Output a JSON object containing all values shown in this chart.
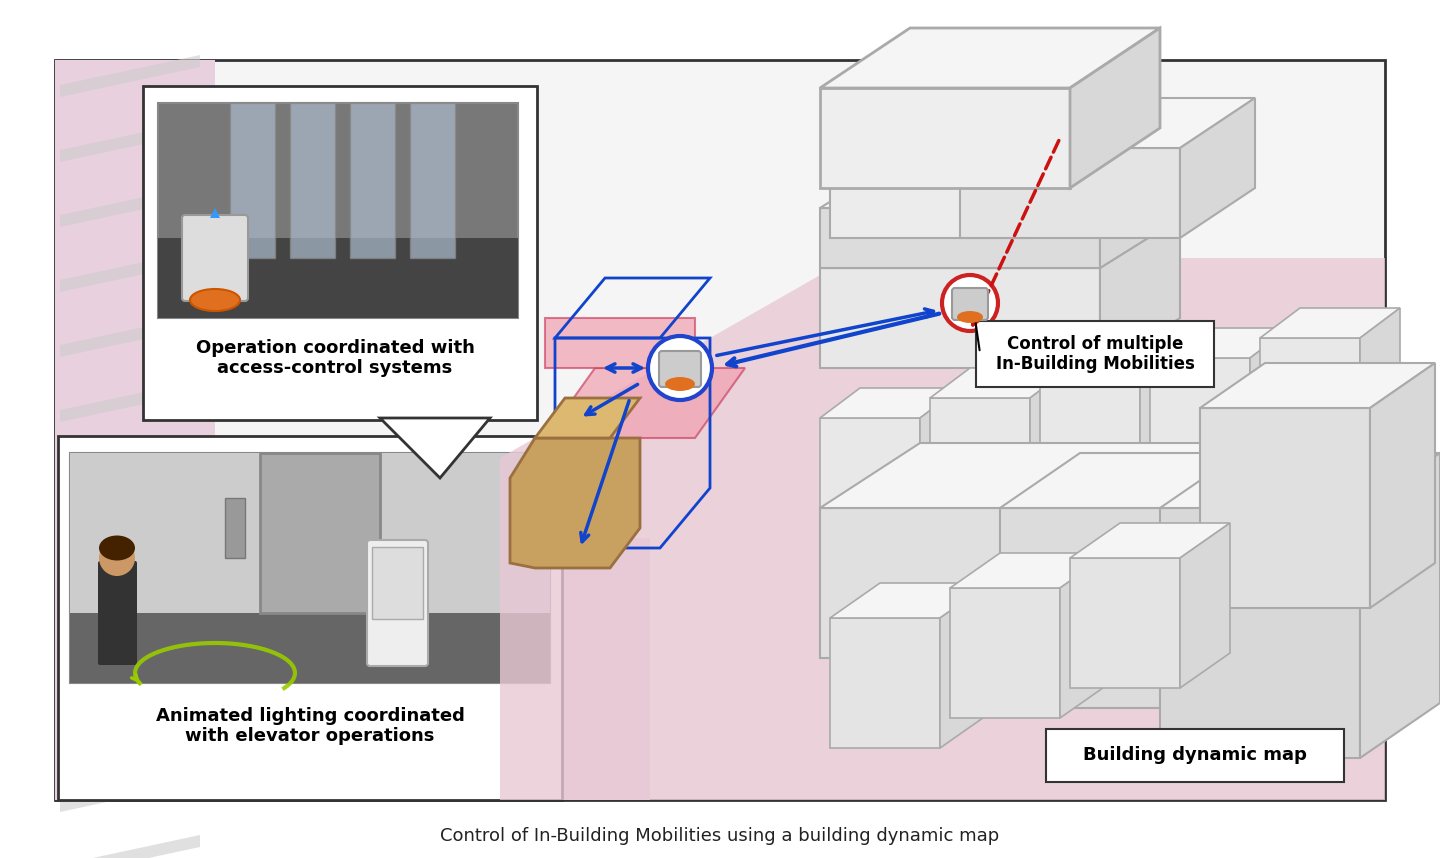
{
  "title": "Control of In-Building Mobilities using a building dynamic map",
  "title_fontsize": 13,
  "title_color": "#222222",
  "background_color": "#ffffff",
  "main_border_color": "#333333",
  "main_bg": "#f5f5f5",
  "pink_bg": "#e8d0de",
  "callout1_title": "Operation coordinated with\naccess-control systems",
  "callout2_title": "Animated lighting coordinated\nwith elevator operations",
  "label_control": "Control of multiple\nIn-Building Mobilities",
  "label_map": "Building dynamic map",
  "callout_font_size": 13,
  "label_font_size": 12,
  "robot_photo1_color": "#555555",
  "robot_photo2_color": "#666666",
  "blue_arrow_color": "#1144cc",
  "red_arrow_color": "#cc1111",
  "building_wall_color": "#e8e8e8",
  "building_outline": "#aaaaaa",
  "pink_zone_color": "#f0c0c8",
  "elevator_box_color": "#c8a060",
  "robot_body_color": "#c8c8c8",
  "robot_accent_color": "#e07020"
}
